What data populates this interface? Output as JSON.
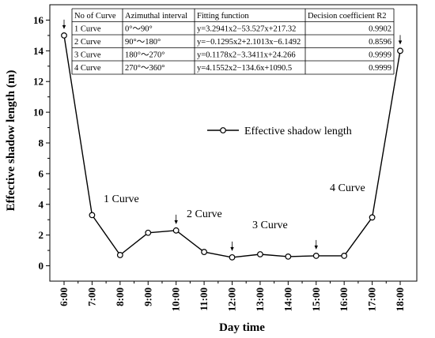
{
  "chart_data": {
    "type": "line",
    "xlabel": "Day time",
    "ylabel": "Effective shadow length (m)",
    "categories": [
      "6:00",
      "7:00",
      "8:00",
      "9:00",
      "10:00",
      "11:00",
      "12:00",
      "13:00",
      "14:00",
      "15:00",
      "16:00",
      "17:00",
      "18:00"
    ],
    "series": [
      {
        "name": "Effective shadow length",
        "values": [
          15.0,
          3.3,
          0.7,
          2.15,
          2.3,
          0.9,
          0.55,
          0.75,
          0.6,
          0.65,
          0.65,
          3.15,
          14.0
        ]
      }
    ],
    "ylim": [
      -1,
      17
    ],
    "yticks": [
      "0",
      "2",
      "4",
      "6",
      "8",
      "10",
      "12",
      "14",
      "16"
    ],
    "grid": false,
    "legend_position": "middle-right",
    "annotations": [
      "1 Curve",
      "2 Curve",
      "3 Curve",
      "4 Curve"
    ],
    "arrows_at": [
      "6:00",
      "10:00",
      "12:00",
      "15:00",
      "18:00"
    ],
    "table": {
      "headers": [
        "No of Curve",
        "Azimuthal interval",
        "Fitting function",
        "Decision coefficient R2"
      ],
      "rows": [
        [
          "1 Curve",
          "0°～90°",
          "y=3.2941x2−53.527x+217.32",
          "0.9902"
        ],
        [
          "2 Curve",
          "90°～180°",
          "y=−0.1295x2+2.1013x−6.1492",
          "0.8596"
        ],
        [
          "3 Curve",
          "180°～270°",
          "y=0.1178x2−3.3411x+24.266",
          "0.9999"
        ],
        [
          "4 Curve",
          "270°～360°",
          "y=4.1552x2−134.6x+1090.5",
          "0.9999"
        ]
      ]
    }
  }
}
